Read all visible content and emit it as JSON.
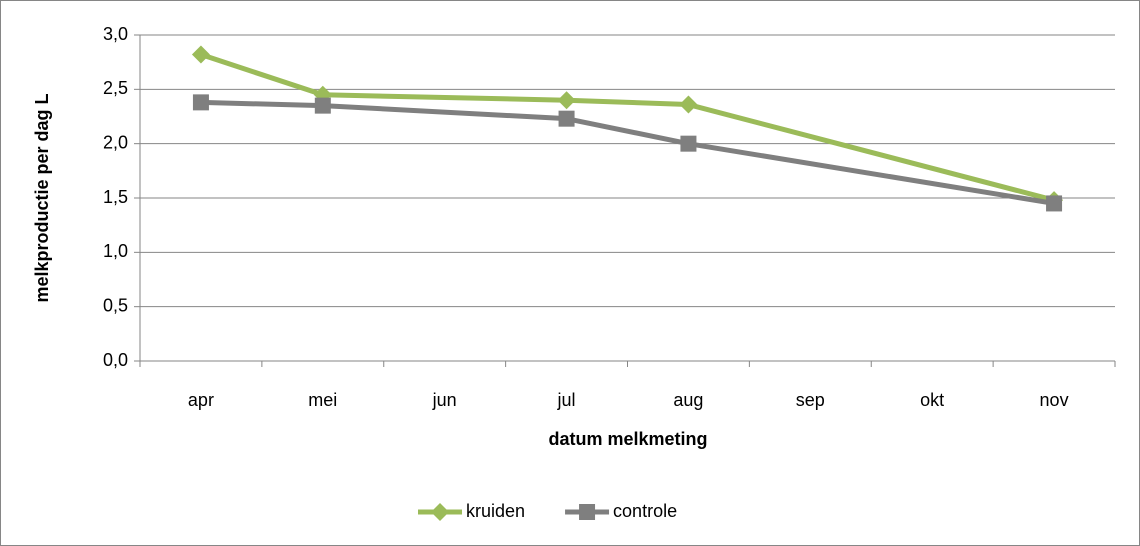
{
  "chart_data": {
    "type": "line",
    "x_label": "datum melkmeting",
    "y_label": "melkproductie per dag L",
    "categories": [
      "apr",
      "mei",
      "jun",
      "jul",
      "aug",
      "sep",
      "okt",
      "nov"
    ],
    "series": [
      {
        "name": "kruiden",
        "color": "#9bbb59",
        "marker": "diamond",
        "values": [
          2.82,
          2.45,
          null,
          2.4,
          2.36,
          null,
          null,
          1.48
        ]
      },
      {
        "name": "controle",
        "color": "#7f7f7f",
        "marker": "square",
        "values": [
          2.38,
          2.35,
          null,
          2.23,
          2.0,
          null,
          null,
          1.45
        ]
      }
    ],
    "connect_gaps": true,
    "ylim": [
      0,
      3
    ],
    "yticks": [
      {
        "value": 0,
        "label": "0,0"
      },
      {
        "value": 0.5,
        "label": "0,5"
      },
      {
        "value": 1,
        "label": "1,0"
      },
      {
        "value": 1.5,
        "label": "1,5"
      },
      {
        "value": 2,
        "label": "2,0"
      },
      {
        "value": 2.5,
        "label": "2,5"
      },
      {
        "value": 3,
        "label": "3,0"
      }
    ],
    "grid": true,
    "legend": "bottom"
  }
}
